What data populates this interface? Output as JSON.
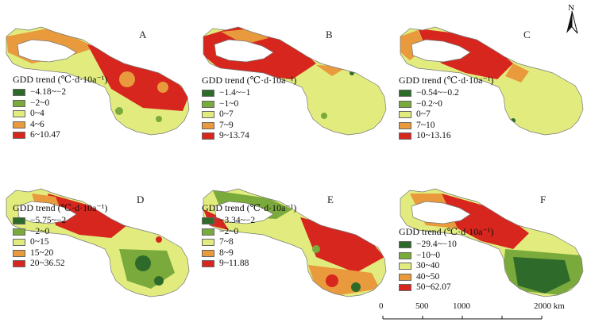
{
  "colors": {
    "dark_green": "#2e6b2a",
    "mid_green": "#7aaa3c",
    "light_yellow": "#e2ec7e",
    "orange": "#e89a3c",
    "red": "#d7261e",
    "outline": "#777777"
  },
  "legend_title": "GDD trend (℃·d·10a⁻¹)",
  "panels": [
    {
      "letter": "A",
      "classes": [
        "−4.18~−2",
        "−2~0",
        "0~4",
        "4~6",
        "6~10.47"
      ]
    },
    {
      "letter": "B",
      "classes": [
        "−1.4~−1",
        "−1~0",
        "0~7",
        "7~9",
        "9~13.74"
      ]
    },
    {
      "letter": "C",
      "classes": [
        "−0.54~−0.2",
        "−0.2~0",
        "0~7",
        "7~10",
        "10~13.16"
      ]
    },
    {
      "letter": "D",
      "classes": [
        "−5.75~−2",
        "−2~0",
        "0~15",
        "15~20",
        "20~36.52"
      ]
    },
    {
      "letter": "E",
      "classes": [
        "−3.34~−2",
        "−2~0",
        "7~8",
        "8~9",
        "9~11.88"
      ]
    },
    {
      "letter": "F",
      "classes": [
        "−29.4~−10",
        "−10~0",
        "30~40",
        "40~50",
        "50~62.07"
      ]
    }
  ],
  "north_label": "N",
  "scale": {
    "labels": [
      "0",
      "500",
      "1000",
      "2000 km"
    ],
    "values": [
      0,
      500,
      1000,
      2000
    ]
  },
  "map_icons": [
    "north-arrow-icon",
    "scale-bar"
  ]
}
